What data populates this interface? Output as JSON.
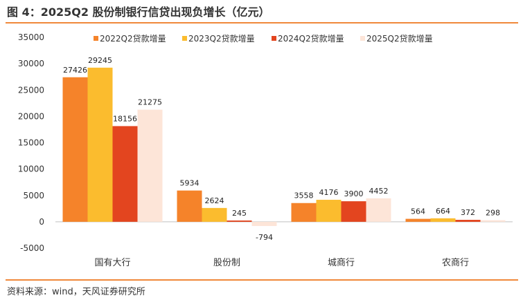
{
  "figure": {
    "title": "图 4：2025Q2 股份制银行信贷出现负增长（亿元）",
    "source": "资料来源：wind，天风证券研究所"
  },
  "chart_data": {
    "type": "bar",
    "title": "图 4：2025Q2 股份制银行信贷出现负增长（亿元）",
    "xlabel": "",
    "ylabel": "",
    "categories": [
      "国有大行",
      "股份制",
      "城商行",
      "农商行"
    ],
    "series": [
      {
        "name": "2022Q2贷款增量",
        "values": [
          27426,
          5934,
          3558,
          564
        ],
        "color": "#f5832a"
      },
      {
        "name": "2023Q2贷款增量",
        "values": [
          29245,
          2624,
          4176,
          664
        ],
        "color": "#fbbc2e"
      },
      {
        "name": "2024Q2贷款增量",
        "values": [
          18156,
          245,
          3900,
          372
        ],
        "color": "#e3451f"
      },
      {
        "name": "2025Q2贷款增量",
        "values": [
          21275,
          -794,
          4452,
          298
        ],
        "color": "#fde5d8"
      }
    ],
    "ylim": [
      -5000,
      35000
    ],
    "yticks": [
      -5000,
      0,
      5000,
      10000,
      15000,
      20000,
      25000,
      30000,
      35000
    ],
    "grid": false,
    "legend": "top"
  }
}
